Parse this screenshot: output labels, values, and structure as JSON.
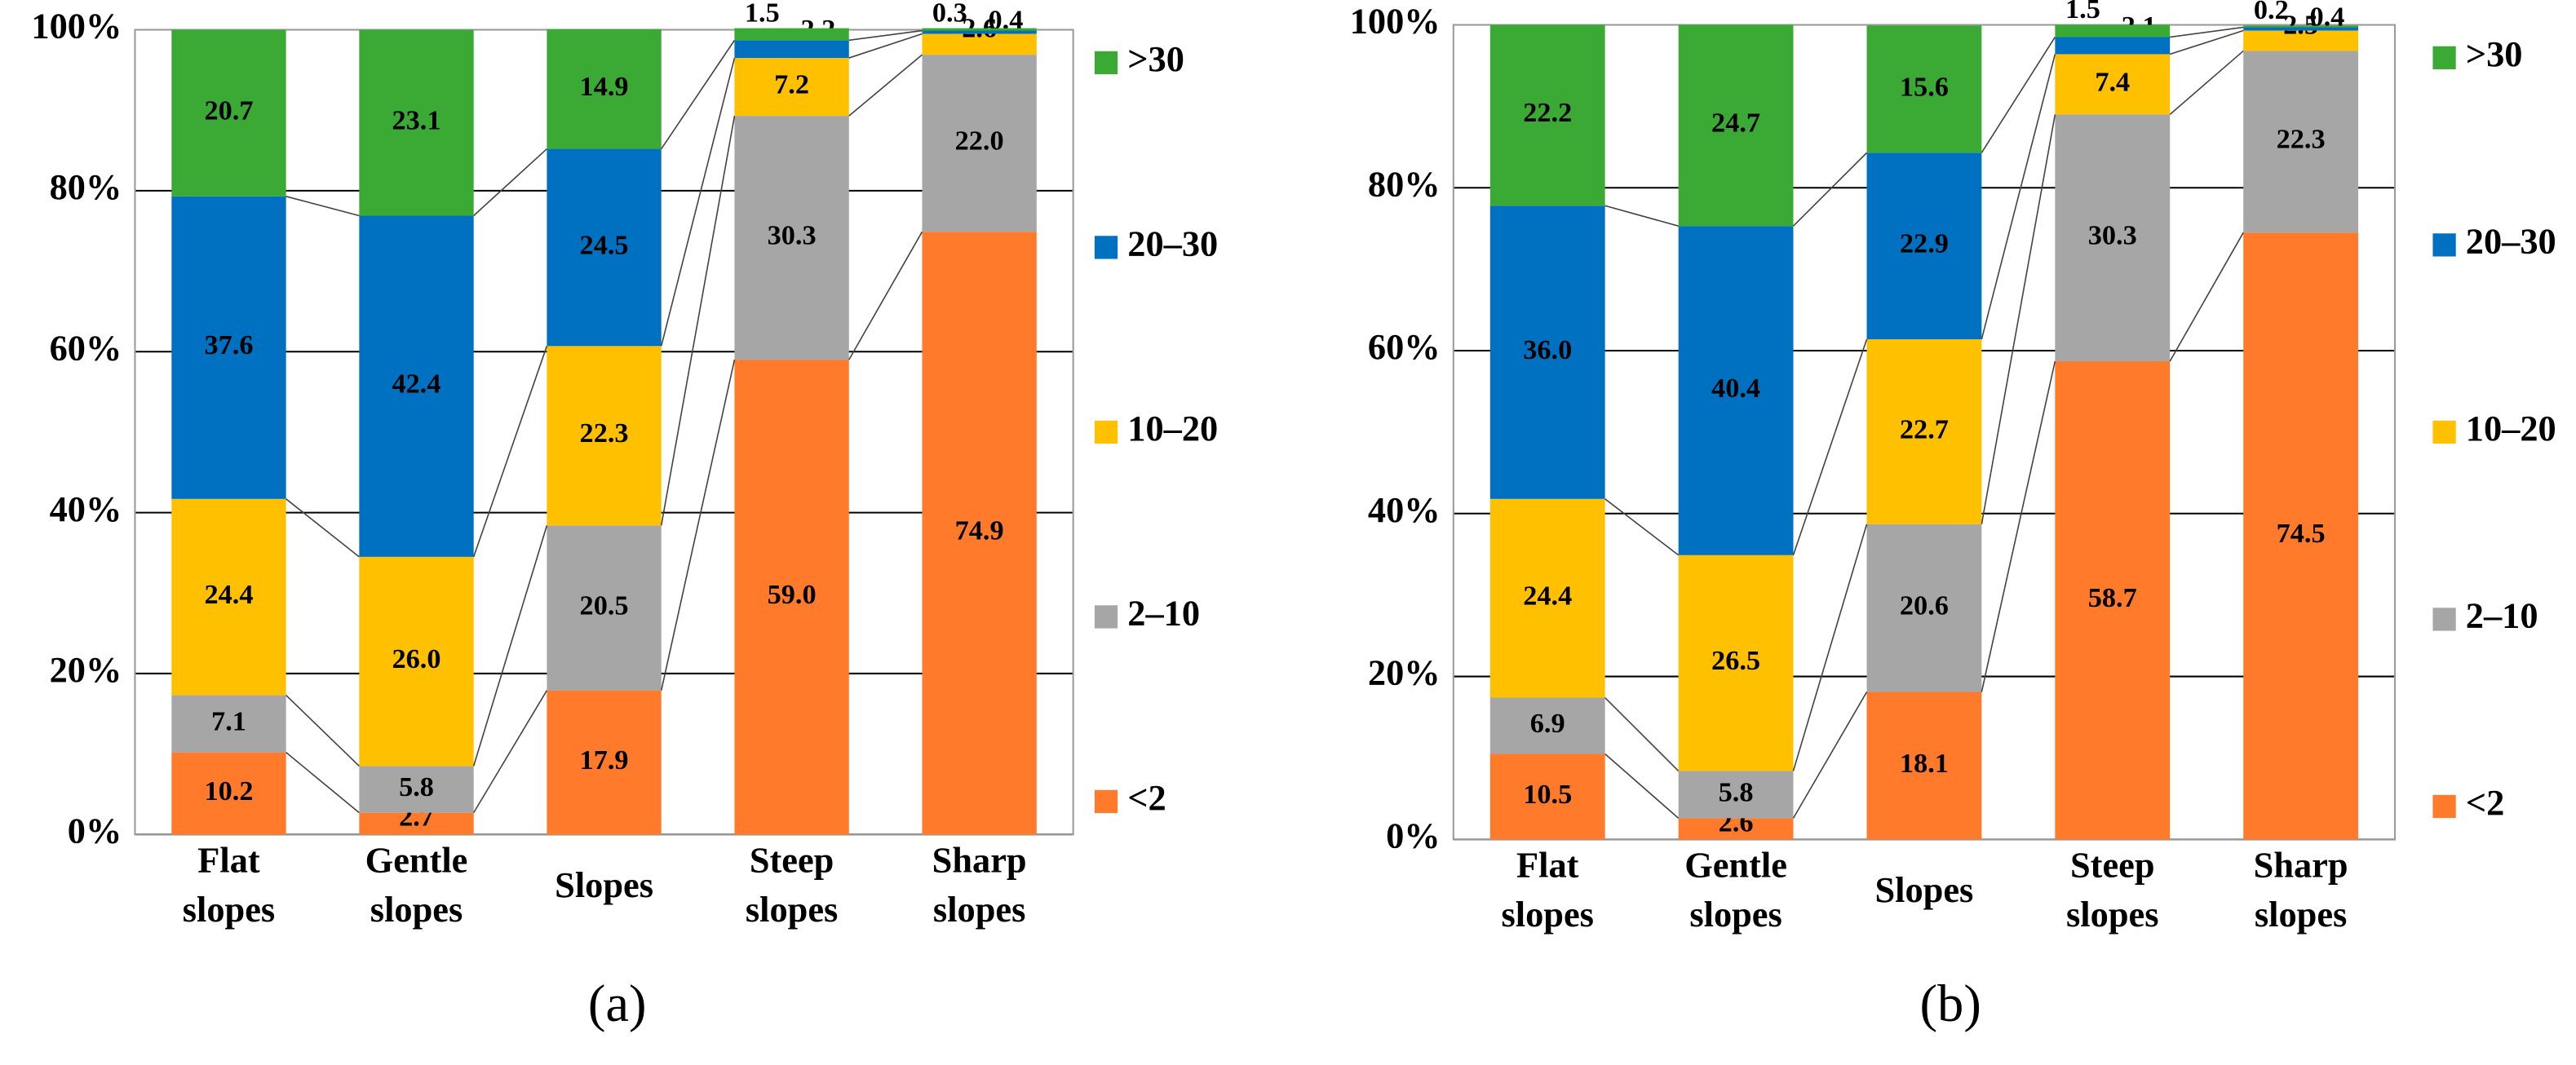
{
  "chart_data": [
    {
      "type": "stacked_bar",
      "label": "(a)",
      "categories": [
        "Flat slopes",
        "Gentle slopes",
        "Slopes",
        "Steep slopes",
        "Sharp slopes"
      ],
      "series": [
        {
          "name": "<2",
          "color": "#ff7a2a",
          "values": [
            10.2,
            2.7,
            17.9,
            59.0,
            74.9
          ],
          "value_labels": [
            "10.2",
            "2.7",
            "17.9",
            "59.0",
            "74.9"
          ]
        },
        {
          "name": "2–10",
          "color": "#a6a6a6",
          "values": [
            7.1,
            5.8,
            20.5,
            30.3,
            22.0
          ],
          "value_labels": [
            "7.1",
            "5.8",
            "20.5",
            "30.3",
            "22.0"
          ]
        },
        {
          "name": "10–20",
          "color": "#ffc000",
          "values": [
            24.4,
            26.0,
            22.3,
            7.2,
            2.6
          ],
          "value_labels": [
            "24.4",
            "26.0",
            "22.3",
            "7.2",
            "2.6"
          ]
        },
        {
          "name": "20–30",
          "color": "#0070c0",
          "values": [
            37.6,
            42.4,
            24.5,
            2.2,
            0.4
          ],
          "value_labels": [
            "37.6",
            "42.4",
            "24.5",
            "2.2",
            "0.4"
          ]
        },
        {
          "name": ">30",
          "color": "#3aaa35",
          "values": [
            20.7,
            23.1,
            14.9,
            1.5,
            0.3
          ],
          "value_labels": [
            "20.7",
            "23.1",
            "14.9",
            "1.5",
            "0.3"
          ]
        }
      ],
      "ylim": [
        0,
        100
      ],
      "yticks": [
        {
          "value": 0,
          "label": "0%"
        },
        {
          "value": 20,
          "label": "20%"
        },
        {
          "value": 40,
          "label": "40%"
        },
        {
          "value": 60,
          "label": "60%"
        },
        {
          "value": 80,
          "label": "80%"
        },
        {
          "value": 100,
          "label": "100%"
        }
      ],
      "grid": true
    },
    {
      "type": "stacked_bar",
      "label": "(b)",
      "categories": [
        "Flat slopes",
        "Gentle slopes",
        "Slopes",
        "Steep slopes",
        "Sharp slopes"
      ],
      "series": [
        {
          "name": "<2",
          "color": "#ff7a2a",
          "values": [
            10.5,
            2.6,
            18.1,
            58.7,
            74.5
          ],
          "value_labels": [
            "10.5",
            "2.6",
            "18.1",
            "58.7",
            "74.5"
          ]
        },
        {
          "name": "2–10",
          "color": "#a6a6a6",
          "values": [
            6.9,
            5.8,
            20.6,
            30.3,
            22.3
          ],
          "value_labels": [
            "6.9",
            "5.8",
            "20.6",
            "30.3",
            "22.3"
          ]
        },
        {
          "name": "10–20",
          "color": "#ffc000",
          "values": [
            24.4,
            26.5,
            22.7,
            7.4,
            2.5
          ],
          "value_labels": [
            "24.4",
            "26.5",
            "22.7",
            "7.4",
            "2.5"
          ]
        },
        {
          "name": "20–30",
          "color": "#0070c0",
          "values": [
            36.0,
            40.4,
            22.9,
            2.1,
            0.4
          ],
          "value_labels": [
            "36.0",
            "40.4",
            "22.9",
            "2.1",
            "0.4"
          ]
        },
        {
          "name": ">30",
          "color": "#3aaa35",
          "values": [
            22.2,
            24.7,
            15.6,
            1.5,
            0.2
          ],
          "value_labels": [
            "22.2",
            "24.7",
            "15.6",
            "1.5",
            "0.2"
          ]
        }
      ],
      "ylim": [
        0,
        100
      ],
      "yticks": [
        {
          "value": 0,
          "label": "0%"
        },
        {
          "value": 20,
          "label": "20%"
        },
        {
          "value": 40,
          "label": "40%"
        },
        {
          "value": 60,
          "label": "60%"
        },
        {
          "value": 80,
          "label": "80%"
        },
        {
          "value": 100,
          "label": "100%"
        }
      ],
      "grid": true
    }
  ]
}
